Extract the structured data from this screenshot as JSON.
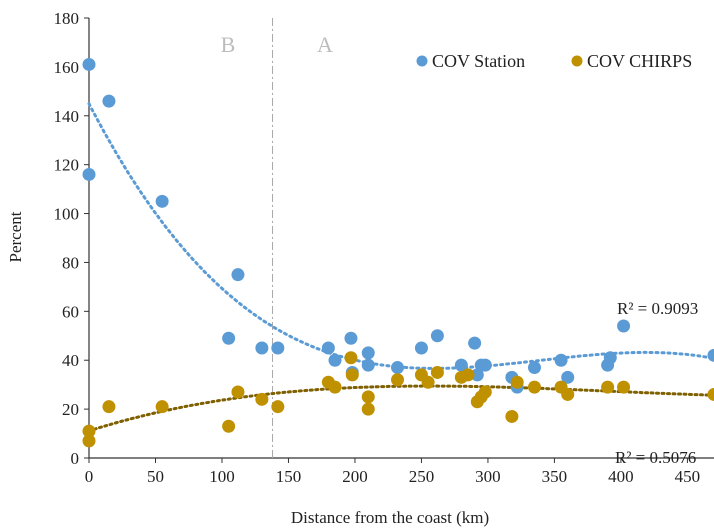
{
  "chart_data": {
    "type": "scatter",
    "xlabel": "Distance from the coast (km)",
    "ylabel": "Percent",
    "xlim": [
      0,
      470
    ],
    "ylim": [
      0,
      180
    ],
    "x_ticks": [
      0,
      50,
      100,
      150,
      200,
      250,
      300,
      350,
      400,
      450
    ],
    "y_ticks": [
      0,
      20,
      40,
      60,
      80,
      100,
      120,
      140,
      160,
      180
    ],
    "grid": false,
    "legend_position": "top-right",
    "region_divider_x": 138,
    "region_labels": [
      "B",
      "A"
    ],
    "series": [
      {
        "name": "COV Station",
        "color": "#5b9bd5",
        "r2_label": "R² = 0.9093",
        "points": [
          [
            0,
            161
          ],
          [
            0,
            116
          ],
          [
            15,
            146
          ],
          [
            55,
            105
          ],
          [
            105,
            49
          ],
          [
            112,
            75
          ],
          [
            130,
            45
          ],
          [
            142,
            45
          ],
          [
            180,
            45
          ],
          [
            185,
            40
          ],
          [
            197,
            49
          ],
          [
            198,
            35
          ],
          [
            210,
            43
          ],
          [
            210,
            38
          ],
          [
            232,
            37
          ],
          [
            250,
            45
          ],
          [
            262,
            50
          ],
          [
            280,
            38
          ],
          [
            290,
            47
          ],
          [
            292,
            34
          ],
          [
            295,
            38
          ],
          [
            298,
            38
          ],
          [
            318,
            33
          ],
          [
            322,
            29
          ],
          [
            335,
            37
          ],
          [
            355,
            40
          ],
          [
            360,
            33
          ],
          [
            390,
            38
          ],
          [
            392,
            41
          ],
          [
            402,
            54
          ],
          [
            470,
            42
          ]
        ]
      },
      {
        "name": "COV CHIRPS",
        "color": "#bf9000",
        "r2_label": "R² = 0.5076",
        "points": [
          [
            0,
            11
          ],
          [
            0,
            7
          ],
          [
            15,
            21
          ],
          [
            55,
            21
          ],
          [
            105,
            13
          ],
          [
            112,
            27
          ],
          [
            130,
            24
          ],
          [
            142,
            21
          ],
          [
            180,
            31
          ],
          [
            185,
            29
          ],
          [
            197,
            41
          ],
          [
            198,
            34
          ],
          [
            210,
            20
          ],
          [
            210,
            25
          ],
          [
            232,
            32
          ],
          [
            250,
            34
          ],
          [
            255,
            31
          ],
          [
            262,
            35
          ],
          [
            280,
            33
          ],
          [
            285,
            34
          ],
          [
            292,
            23
          ],
          [
            295,
            25
          ],
          [
            298,
            27
          ],
          [
            318,
            17
          ],
          [
            322,
            31
          ],
          [
            335,
            29
          ],
          [
            355,
            29
          ],
          [
            360,
            26
          ],
          [
            390,
            29
          ],
          [
            402,
            29
          ],
          [
            470,
            26
          ]
        ]
      }
    ]
  }
}
